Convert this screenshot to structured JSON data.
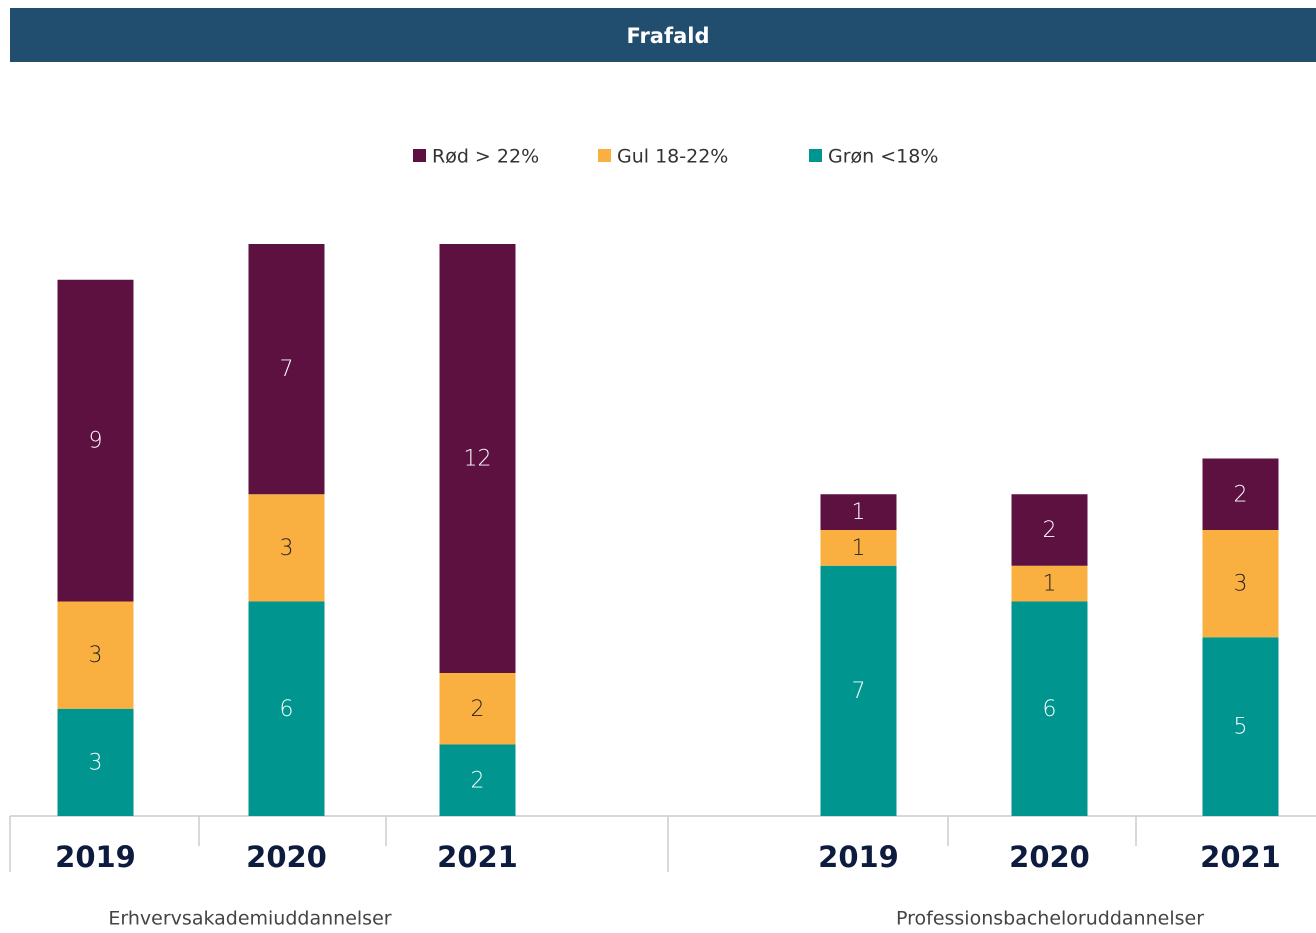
{
  "chart_data": {
    "type": "stacked-bar",
    "title": "Frafald",
    "groups": [
      "Erhvervsakademiuddannelser",
      "Professionsbacheloruddannelser"
    ],
    "categories": [
      "2019",
      "2020",
      "2021",
      "2019",
      "2020",
      "2021"
    ],
    "series": [
      {
        "name": "Grøn <18%",
        "color": "#00968f",
        "values": [
          3,
          6,
          2,
          7,
          6,
          5
        ]
      },
      {
        "name": "Gul 18-22%",
        "color": "#f9b040",
        "values": [
          3,
          3,
          2,
          1,
          1,
          3
        ]
      },
      {
        "name": "Rød > 22%",
        "color": "#5c1140",
        "values": [
          9,
          7,
          12,
          1,
          2,
          2
        ]
      }
    ]
  }
}
